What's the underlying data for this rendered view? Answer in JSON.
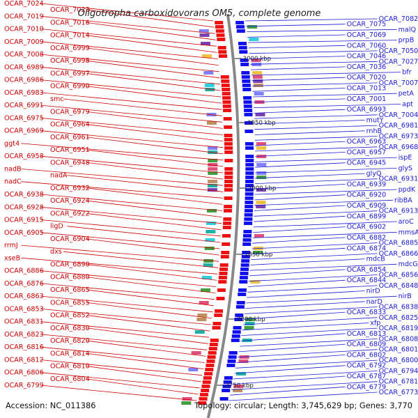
{
  "title": "Oligotropha carboxidovorans OM5, complete genome",
  "footer": {
    "accession": "Accession: NC_011386",
    "summary": "Topology: circular; Length: 3,745,629 bp; Genes: 3,770"
  },
  "colors": {
    "left_labels": "#cc0000",
    "right_labels": "#1a1ad6",
    "forward_strand": "#ee1111",
    "reverse_strand": "#1111ee",
    "backbone": "#888888"
  },
  "kbp_ticks": [
    "3000 kbp",
    "2950 kbp",
    "2900 kbp",
    "2850 kbp",
    "2800 kbp",
    "2750 kbp"
  ],
  "left_labels": [
    "OCAR_7024",
    "OCAR_7023",
    "OCAR_7019",
    "OCAR_7016",
    "OCAR_7010",
    "OCAR_7014",
    "OCAR_7009",
    "OCAR_6999",
    "OCAR_7008",
    "OCAR_6998",
    "OCAR_6989",
    "OCAR_6997",
    "OCAR_6986",
    "OCAR_6990",
    "OCAR_6983",
    "smc",
    "OCAR_6991",
    "OCAR_6979",
    "OCAR_6975",
    "OCAR_6964",
    "OCAR_6969",
    "OCAR_6961",
    "ggt4",
    "OCAR_6951",
    "OCAR_6958",
    "OCAR_6948",
    "nadB",
    "nadA",
    "nadC",
    "OCAR_6932",
    "OCAR_6938",
    "OCAR_6924",
    "OCAR_6928",
    "OCAR_6922",
    "OCAR_6915",
    "ligD",
    "OCAR_6905",
    "OCAR_6904",
    "rrmJ",
    "dxs",
    "xseB",
    "OCAR_6890",
    "OCAR_6886",
    "OCAR_6880",
    "OCAR_6876",
    "OCAR_6865",
    "OCAR_6863",
    "OCAR_6855",
    "OCAR_6853",
    "OCAR_6852",
    "OCAR_6831",
    "OCAR_6830",
    "OCAR_6823",
    "OCAR_6820",
    "OCAR_6816",
    "OCAR_6814",
    "OCAR_6812",
    "OCAR_6810",
    "OCAR_6806",
    "OCAR_6804",
    "OCAR_6799"
  ],
  "right_labels": [
    "OCAR_7082",
    "OCAR_7075",
    "malQ",
    "OCAR_7069",
    "prpB",
    "OCAR_7060",
    "OCAR_7050",
    "OCAR_7046",
    "OCAR_7027",
    "OCAR_7036",
    "bfr",
    "OCAR_7020",
    "OCAR_7007",
    "OCAR_7013",
    "petA",
    "OCAR_7001",
    "apt",
    "OCAR_6993",
    "OCAR_7004",
    "mutY",
    "OCAR_6981",
    "rnhB",
    "OCAR_6973",
    "OCAR_6963",
    "OCAR_6968",
    "OCAR_6957",
    "ispE",
    "OCAR_6945",
    "glyS",
    "glyQ",
    "OCAR_6931",
    "OCAR_6939",
    "ppdK",
    "OCAR_6920",
    "ribBA",
    "OCAR_6909",
    "OCAR_6913",
    "OCAR_6899",
    "aroC",
    "OCAR_6902",
    "mmsA",
    "OCAR_6882",
    "OCAR_6885",
    "OCAR_6874",
    "OCAR_6866",
    "mdcB",
    "mdcG",
    "OCAR_6854",
    "OCAR_6856",
    "OCAR_6844",
    "OCAR_6848",
    "nirD",
    "nirB",
    "narD",
    "OCAR_6838",
    "OCAR_6833",
    "OCAR_6825",
    "xfp",
    "OCAR_6819",
    "OCAR_6813",
    "OCAR_6808",
    "OCAR_6809",
    "OCAR_6801",
    "OCAR_6802",
    "OCAR_6800",
    "OCAR_6792",
    "OCAR_6794",
    "OCAR_6787",
    "OCAR_6781",
    "OCAR_6779",
    "OCAR_6773"
  ]
}
